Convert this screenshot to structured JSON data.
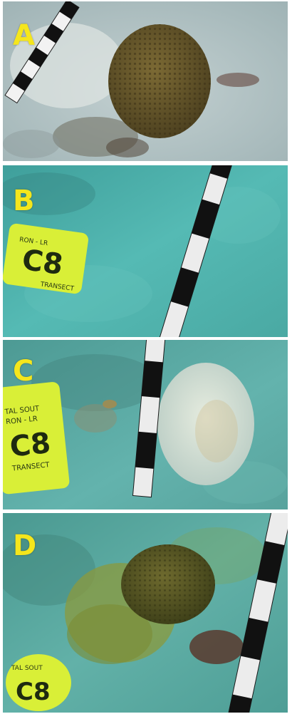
{
  "panels": [
    {
      "letter": "A",
      "tag": ""
    },
    {
      "letter": "B",
      "tag": "C8"
    },
    {
      "letter": "C",
      "tag": "C8"
    },
    {
      "letter": "D",
      "tag": "C8"
    }
  ],
  "tag_small_text": {
    "b1": "RON - LR",
    "b2": "TRANSECT",
    "c1": "TAL SOUT",
    "c2": "RON - LR",
    "c3": "TRANSECT",
    "d1": "TAL SOUT"
  },
  "colors": {
    "label": "#f5e61c",
    "tag": "#d9ef37",
    "sand_a": "#b9c8c9",
    "water_b": "#4fb8b2",
    "water_c": "#5fb2ac",
    "water_d": "#5aa79f",
    "coral_a": "#6b5b2c"
  }
}
